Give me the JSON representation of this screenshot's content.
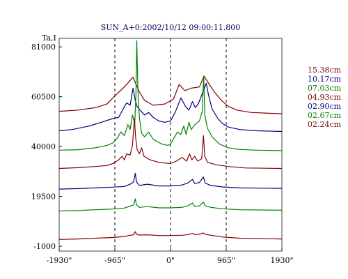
{
  "chart_data": {
    "type": "line",
    "title": "SUN_A+0:2002/10/12 09:00:11.800",
    "ylabel": "Ta,I",
    "xlabel": "",
    "y_ticks": [
      81000,
      60500,
      40000,
      19500,
      -1000
    ],
    "y_tick_labels": [
      "81000",
      "60500",
      "40000",
      "19500",
      "-1000"
    ],
    "x_ticks": [
      -1930,
      -965,
      0,
      965,
      1930
    ],
    "x_tick_labels": [
      "-1930\"",
      "-965\"",
      "0\"",
      "965\"",
      "1930\""
    ],
    "xlim": [
      -1930,
      1930
    ],
    "ylim": [
      -3000,
      84500
    ],
    "vlines": [
      -965,
      0,
      965
    ],
    "grid": false,
    "legend_position": "right",
    "series": [
      {
        "name": "15.38cm",
        "color": "#800000",
        "points": [
          [
            -1930,
            54500
          ],
          [
            -1600,
            55000
          ],
          [
            -1300,
            56000
          ],
          [
            -1100,
            57500
          ],
          [
            -960,
            61000
          ],
          [
            -800,
            64500
          ],
          [
            -650,
            68500
          ],
          [
            -540,
            62500
          ],
          [
            -450,
            59000
          ],
          [
            -300,
            57000
          ],
          [
            -100,
            57500
          ],
          [
            50,
            59500
          ],
          [
            150,
            65500
          ],
          [
            250,
            63000
          ],
          [
            350,
            64000
          ],
          [
            500,
            64500
          ],
          [
            580,
            69000
          ],
          [
            660,
            66000
          ],
          [
            760,
            62500
          ],
          [
            880,
            59000
          ],
          [
            1000,
            56500
          ],
          [
            1150,
            55000
          ],
          [
            1400,
            54000
          ],
          [
            1930,
            53500
          ]
        ]
      },
      {
        "name": "10.17cm",
        "color": "#000080",
        "points": [
          [
            -1930,
            46500
          ],
          [
            -1700,
            47000
          ],
          [
            -1400,
            48500
          ],
          [
            -1200,
            50000
          ],
          [
            -1000,
            51500
          ],
          [
            -900,
            52000
          ],
          [
            -820,
            55500
          ],
          [
            -760,
            58000
          ],
          [
            -700,
            57000
          ],
          [
            -650,
            64000
          ],
          [
            -610,
            59000
          ],
          [
            -580,
            56500
          ],
          [
            -530,
            55000
          ],
          [
            -450,
            53000
          ],
          [
            -380,
            54000
          ],
          [
            -300,
            52000
          ],
          [
            -200,
            50500
          ],
          [
            -100,
            50000
          ],
          [
            0,
            50500
          ],
          [
            80,
            54000
          ],
          [
            180,
            60000
          ],
          [
            260,
            56500
          ],
          [
            320,
            55000
          ],
          [
            380,
            58500
          ],
          [
            430,
            56000
          ],
          [
            480,
            57500
          ],
          [
            570,
            63000
          ],
          [
            620,
            66000
          ],
          [
            660,
            61000
          ],
          [
            720,
            55500
          ],
          [
            820,
            51500
          ],
          [
            900,
            49500
          ],
          [
            1000,
            48000
          ],
          [
            1200,
            47000
          ],
          [
            1500,
            46500
          ],
          [
            1930,
            46200
          ]
        ]
      },
      {
        "name": "07.03cm",
        "color": "#008000",
        "points": [
          [
            -1930,
            38500
          ],
          [
            -1600,
            38700
          ],
          [
            -1300,
            39500
          ],
          [
            -1100,
            40500
          ],
          [
            -1000,
            41500
          ],
          [
            -920,
            43500
          ],
          [
            -860,
            46000
          ],
          [
            -800,
            44500
          ],
          [
            -740,
            49000
          ],
          [
            -700,
            47000
          ],
          [
            -660,
            53000
          ],
          [
            -620,
            49500
          ],
          [
            -600,
            61000
          ],
          [
            -585,
            83500
          ],
          [
            -565,
            63000
          ],
          [
            -540,
            52000
          ],
          [
            -500,
            45500
          ],
          [
            -450,
            44000
          ],
          [
            -380,
            46000
          ],
          [
            -300,
            43000
          ],
          [
            -150,
            41000
          ],
          [
            -50,
            40500
          ],
          [
            0,
            41000
          ],
          [
            60,
            43500
          ],
          [
            120,
            46000
          ],
          [
            180,
            45000
          ],
          [
            230,
            48500
          ],
          [
            270,
            45000
          ],
          [
            320,
            50000
          ],
          [
            360,
            47000
          ],
          [
            420,
            49000
          ],
          [
            500,
            50500
          ],
          [
            550,
            54500
          ],
          [
            575,
            69000
          ],
          [
            595,
            53000
          ],
          [
            640,
            47500
          ],
          [
            720,
            44000
          ],
          [
            850,
            41000
          ],
          [
            1000,
            39500
          ],
          [
            1200,
            38800
          ],
          [
            1500,
            38500
          ],
          [
            1930,
            38300
          ]
        ]
      },
      {
        "name": "04.93cm",
        "color": "#800000",
        "points": [
          [
            -1930,
            31000
          ],
          [
            -1600,
            31300
          ],
          [
            -1300,
            31800
          ],
          [
            -1100,
            32200
          ],
          [
            -1000,
            33000
          ],
          [
            -900,
            34500
          ],
          [
            -840,
            36000
          ],
          [
            -800,
            34500
          ],
          [
            -760,
            37000
          ],
          [
            -700,
            36500
          ],
          [
            -660,
            40500
          ],
          [
            -625,
            51500
          ],
          [
            -605,
            44000
          ],
          [
            -580,
            39000
          ],
          [
            -540,
            37000
          ],
          [
            -500,
            39500
          ],
          [
            -460,
            36000
          ],
          [
            -350,
            34500
          ],
          [
            -200,
            33500
          ],
          [
            0,
            33000
          ],
          [
            100,
            34000
          ],
          [
            200,
            35500
          ],
          [
            280,
            34000
          ],
          [
            330,
            37000
          ],
          [
            370,
            34500
          ],
          [
            420,
            36000
          ],
          [
            470,
            34000
          ],
          [
            540,
            35000
          ],
          [
            570,
            44500
          ],
          [
            595,
            36000
          ],
          [
            640,
            33500
          ],
          [
            800,
            32500
          ],
          [
            1000,
            31800
          ],
          [
            1300,
            31200
          ],
          [
            1930,
            31000
          ]
        ]
      },
      {
        "name": "02.90cm",
        "color": "#000080",
        "points": [
          [
            -1930,
            22500
          ],
          [
            -1600,
            22700
          ],
          [
            -1300,
            23000
          ],
          [
            -1000,
            23300
          ],
          [
            -800,
            23600
          ],
          [
            -700,
            24500
          ],
          [
            -640,
            25500
          ],
          [
            -610,
            29000
          ],
          [
            -590,
            25500
          ],
          [
            -540,
            24000
          ],
          [
            -400,
            24500
          ],
          [
            -200,
            23800
          ],
          [
            0,
            23800
          ],
          [
            200,
            24200
          ],
          [
            300,
            25000
          ],
          [
            380,
            26500
          ],
          [
            420,
            24800
          ],
          [
            500,
            25200
          ],
          [
            570,
            27500
          ],
          [
            600,
            25000
          ],
          [
            700,
            24000
          ],
          [
            900,
            23400
          ],
          [
            1200,
            23000
          ],
          [
            1930,
            22800
          ]
        ]
      },
      {
        "name": "02.67cm",
        "color": "#008000",
        "points": [
          [
            -1930,
            13500
          ],
          [
            -1600,
            13700
          ],
          [
            -1300,
            14000
          ],
          [
            -1000,
            14300
          ],
          [
            -800,
            14700
          ],
          [
            -700,
            15500
          ],
          [
            -640,
            16000
          ],
          [
            -610,
            18500
          ],
          [
            -590,
            16000
          ],
          [
            -540,
            15000
          ],
          [
            -400,
            15300
          ],
          [
            -200,
            14800
          ],
          [
            0,
            14800
          ],
          [
            200,
            15000
          ],
          [
            300,
            15600
          ],
          [
            380,
            16800
          ],
          [
            420,
            15400
          ],
          [
            500,
            15600
          ],
          [
            570,
            17200
          ],
          [
            600,
            15600
          ],
          [
            700,
            15000
          ],
          [
            900,
            14400
          ],
          [
            1200,
            14000
          ],
          [
            1930,
            13800
          ]
        ]
      },
      {
        "name": "02.24cm",
        "color": "#800000",
        "points": [
          [
            -1930,
            1800
          ],
          [
            -1600,
            2000
          ],
          [
            -1300,
            2300
          ],
          [
            -1000,
            2600
          ],
          [
            -800,
            3000
          ],
          [
            -700,
            3500
          ],
          [
            -640,
            3700
          ],
          [
            -610,
            5000
          ],
          [
            -590,
            3900
          ],
          [
            -540,
            3600
          ],
          [
            -400,
            3700
          ],
          [
            -200,
            3400
          ],
          [
            0,
            3400
          ],
          [
            200,
            3500
          ],
          [
            300,
            3800
          ],
          [
            380,
            4300
          ],
          [
            420,
            3800
          ],
          [
            500,
            3900
          ],
          [
            570,
            4500
          ],
          [
            600,
            3900
          ],
          [
            700,
            3500
          ],
          [
            900,
            2800
          ],
          [
            1200,
            2300
          ],
          [
            1930,
            2000
          ]
        ]
      }
    ]
  }
}
